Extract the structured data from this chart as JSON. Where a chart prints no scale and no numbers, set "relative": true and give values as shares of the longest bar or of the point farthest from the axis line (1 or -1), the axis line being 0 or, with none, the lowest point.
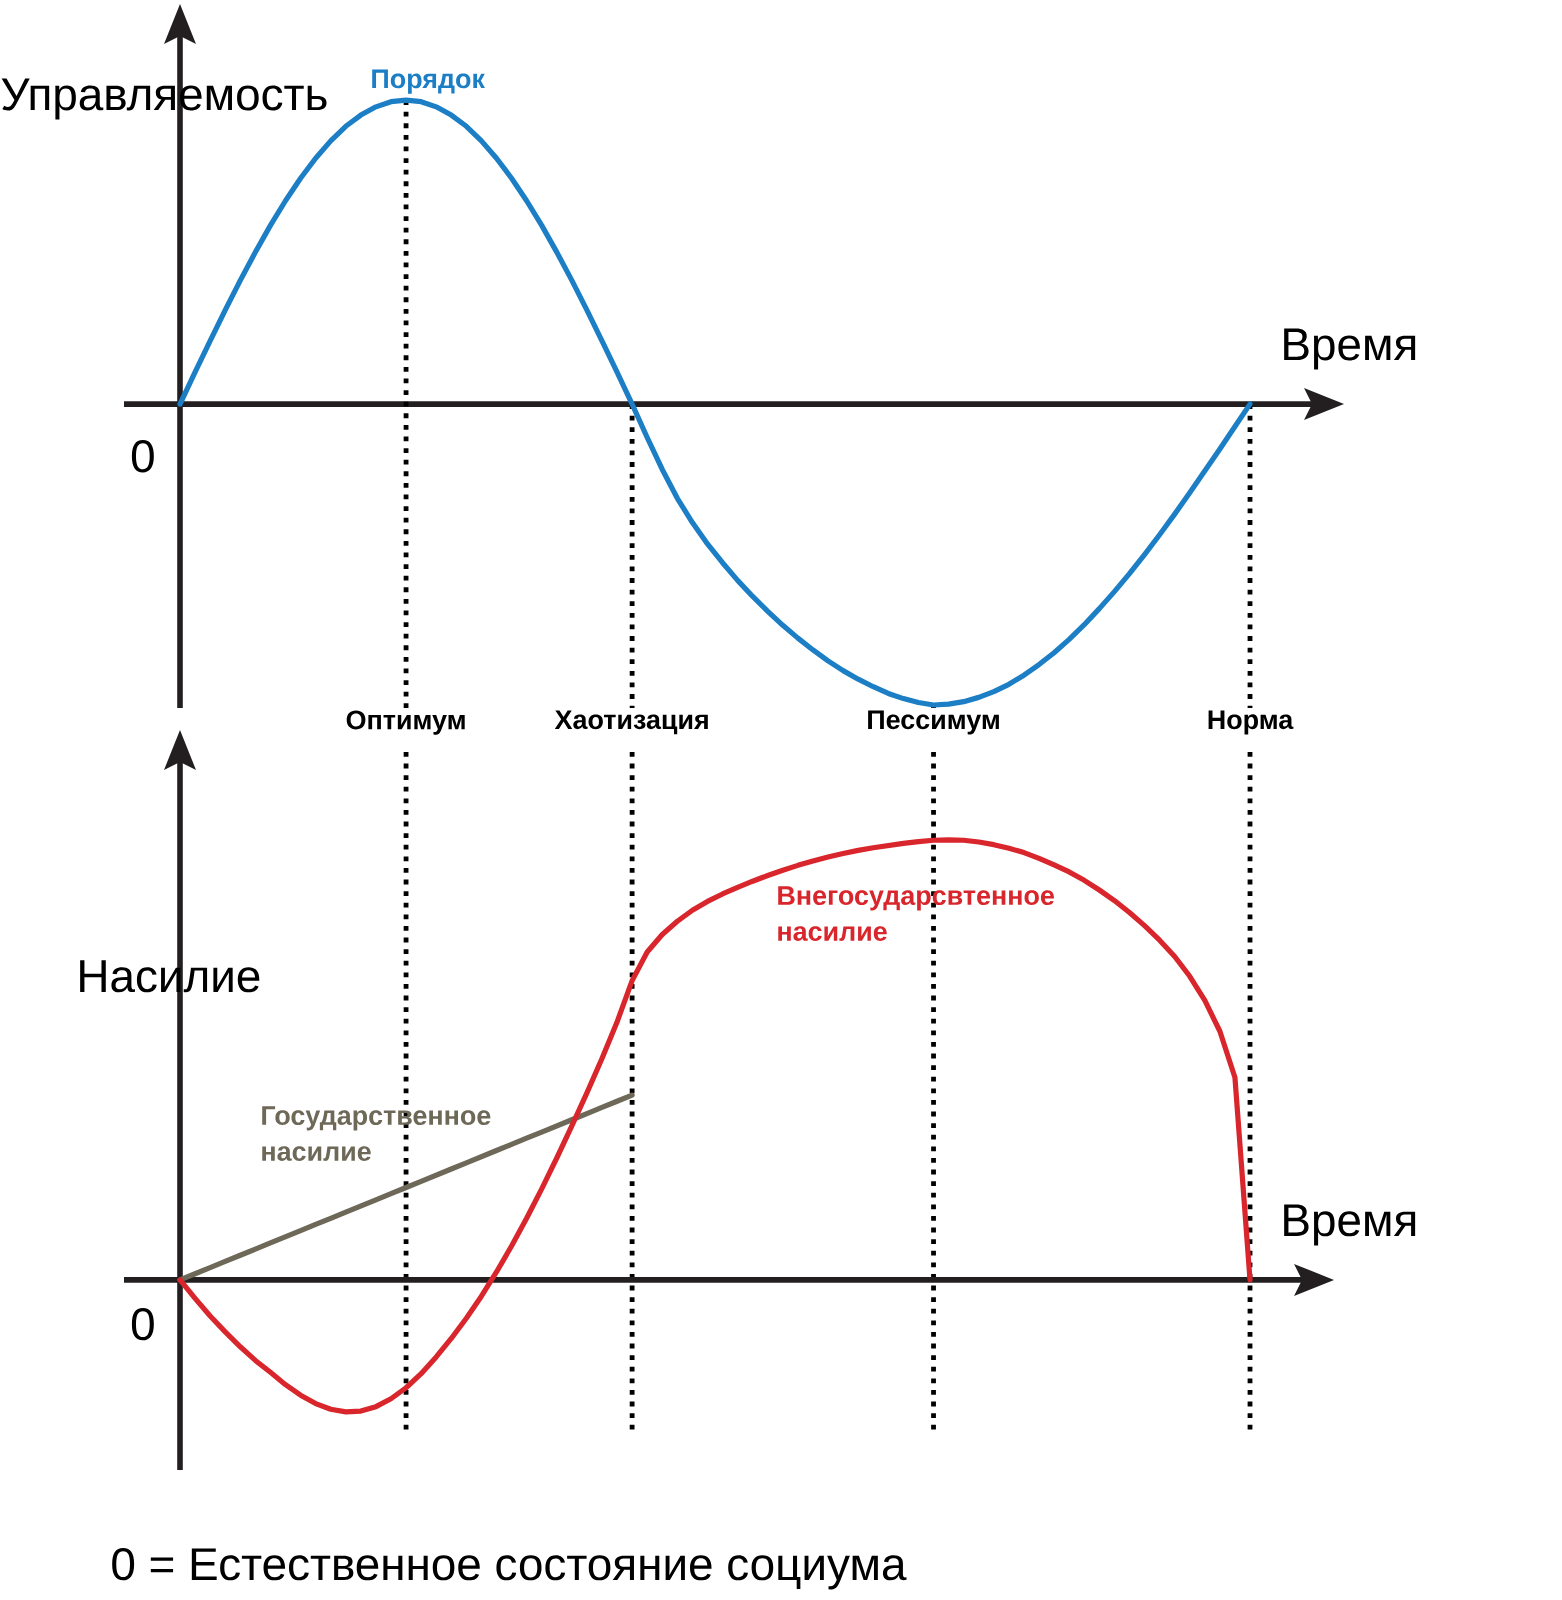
{
  "chart_data": [
    {
      "type": "line",
      "relative": true,
      "xlabel": "Время",
      "ylabel": "Управляемость",
      "annotations": [
        "0"
      ],
      "grid": "x",
      "tick_labels": "x",
      "categories": [
        null,
        null,
        null,
        null,
        null,
        null,
        null,
        null,
        null,
        null,
        null,
        null,
        null,
        null,
        null,
        "Оптимум",
        null,
        null,
        null,
        null,
        null,
        null,
        null,
        null,
        null,
        null,
        null,
        null,
        null,
        null,
        "Хаотизация",
        null,
        null,
        null,
        null,
        null,
        null,
        null,
        null,
        null,
        null,
        null,
        null,
        null,
        null,
        null,
        null,
        null,
        null,
        null,
        "Пессимум",
        null,
        null,
        null,
        null,
        null,
        null,
        null,
        null,
        null,
        null,
        null,
        null,
        null,
        null,
        null,
        null,
        null,
        null,
        null,
        null,
        "Норма"
      ],
      "series": [
        {
          "name": "Порядок",
          "color": "#1c7ec4",
          "values": [
            0,
            0.105,
            0.208,
            0.309,
            0.407,
            0.5,
            0.588,
            0.669,
            0.743,
            0.809,
            0.866,
            0.914,
            0.951,
            0.978,
            0.995,
            1,
            0.995,
            0.978,
            0.951,
            0.914,
            0.866,
            0.809,
            0.743,
            0.669,
            0.588,
            0.5,
            0.407,
            0.309,
            0.208,
            0.105,
            0,
            -0.11,
            -0.215,
            -0.31,
            -0.39,
            -0.46,
            -0.522,
            -0.58,
            -0.633,
            -0.682,
            -0.728,
            -0.77,
            -0.809,
            -0.845,
            -0.877,
            -0.905,
            -0.93,
            -0.952,
            -0.969,
            -0.982,
            -0.99,
            -0.987,
            -0.979,
            -0.965,
            -0.946,
            -0.922,
            -0.892,
            -0.857,
            -0.818,
            -0.774,
            -0.726,
            -0.673,
            -0.617,
            -0.558,
            -0.495,
            -0.43,
            -0.362,
            -0.292,
            -0.22,
            -0.148,
            -0.074,
            0
          ]
        }
      ]
    },
    {
      "type": "line",
      "relative": true,
      "xlabel": "Время",
      "ylabel": "Насилие",
      "annotations": [
        "0",
        "0 = Естественное состояние социума"
      ],
      "categories": [
        null,
        null,
        null,
        null,
        null,
        null,
        null,
        null,
        null,
        null,
        null,
        null,
        null,
        null,
        null,
        null,
        null,
        null,
        null,
        null,
        null,
        null,
        null,
        null,
        null,
        null,
        null,
        null,
        null,
        null,
        null,
        null,
        null,
        null,
        null,
        null,
        null,
        null,
        null,
        null,
        null,
        null,
        null,
        null,
        null,
        null,
        null,
        null,
        null,
        null,
        null,
        null,
        null,
        null,
        null,
        null,
        null,
        null,
        null,
        null,
        null,
        null,
        null,
        null,
        null,
        null,
        null,
        null,
        null,
        null,
        null,
        null
      ],
      "series": [
        {
          "name": "Государственное насилие",
          "color": "#6d6858",
          "values": [
            0,
            0.014,
            0.028,
            0.042,
            0.056,
            0.07,
            0.084,
            0.098,
            0.112,
            0.126,
            0.14,
            0.154,
            0.168,
            0.182,
            0.196,
            0.21,
            0.224,
            0.238,
            0.252,
            0.266,
            0.28,
            0.294,
            0.308,
            0.322,
            0.336,
            0.35,
            0.364,
            0.378,
            0.392,
            0.406,
            0.42,
            null,
            null,
            null,
            null,
            null,
            null,
            null,
            null,
            null,
            null,
            null,
            null,
            null,
            null,
            null,
            null,
            null,
            null,
            null,
            null,
            null,
            null,
            null,
            null,
            null,
            null,
            null,
            null,
            null,
            null,
            null,
            null,
            null,
            null,
            null,
            null,
            null,
            null,
            null,
            null,
            null
          ]
        },
        {
          "name": "Внегосударсвтенное насилие",
          "color": "#d8262c",
          "values": [
            0,
            -0.042,
            -0.082,
            -0.118,
            -0.152,
            -0.183,
            -0.21,
            -0.238,
            -0.262,
            -0.281,
            -0.294,
            -0.3,
            -0.298,
            -0.288,
            -0.27,
            -0.245,
            -0.213,
            -0.175,
            -0.133,
            -0.087,
            -0.037,
            0.018,
            0.077,
            0.14,
            0.207,
            0.277,
            0.35,
            0.425,
            0.503,
            0.586,
            0.68,
            0.745,
            0.785,
            0.815,
            0.84,
            0.86,
            0.877,
            0.892,
            0.906,
            0.919,
            0.931,
            0.942,
            0.952,
            0.961,
            0.969,
            0.976,
            0.982,
            0.987,
            0.992,
            0.996,
            0.999,
            1,
            0.999,
            0.995,
            0.989,
            0.981,
            0.971,
            0.958,
            0.943,
            0.927,
            0.908,
            0.886,
            0.862,
            0.835,
            0.805,
            0.772,
            0.735,
            0.69,
            0.635,
            0.565,
            0.46,
            0
          ]
        }
      ]
    }
  ]
}
